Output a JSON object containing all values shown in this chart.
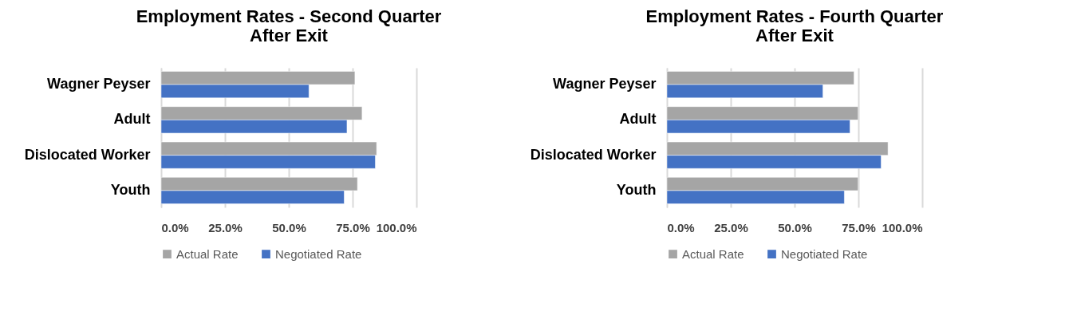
{
  "chart_data": [
    {
      "type": "bar",
      "orientation": "horizontal",
      "title": "Employment Rates - Second Quarter\nAfter Exit",
      "categories": [
        "Wagner Peyser",
        "Adult",
        "Dislocated Worker",
        "Youth"
      ],
      "series": [
        {
          "name": "Actual Rate",
          "color": "#a5a5a5",
          "values": [
            75.9,
            78.7,
            84.4,
            76.9
          ]
        },
        {
          "name": "Negotiated Rate",
          "color": "#4472c4",
          "values": [
            57.9,
            72.8,
            83.9,
            71.7
          ]
        }
      ],
      "xlim": [
        0,
        100
      ],
      "xticks": [
        {
          "value": 0,
          "label": "0.0%"
        },
        {
          "value": 25,
          "label": "25.0%"
        },
        {
          "value": 50,
          "label": "50.0%"
        },
        {
          "value": 75,
          "label": "75.0%"
        },
        {
          "value": 100,
          "label": "100.0%"
        }
      ],
      "grid": "x",
      "legend": "bottom"
    },
    {
      "type": "bar",
      "orientation": "horizontal",
      "title": "Employment Rates - Fourth Quarter\nAfter Exit",
      "categories": [
        "Wagner Peyser",
        "Adult",
        "Dislocated Worker",
        "Youth"
      ],
      "series": [
        {
          "name": "Actual Rate",
          "color": "#a5a5a5",
          "values": [
            73.3,
            74.9,
            86.6,
            74.9
          ]
        },
        {
          "name": "Negotiated Rate",
          "color": "#4472c4",
          "values": [
            61.1,
            71.7,
            83.9,
            69.5
          ]
        }
      ],
      "xlim": [
        0,
        100
      ],
      "xticks": [
        {
          "value": 0,
          "label": "0.0%"
        },
        {
          "value": 25,
          "label": "25.0%"
        },
        {
          "value": 50,
          "label": "50.0%"
        },
        {
          "value": 75,
          "label": "75.0%"
        },
        {
          "value": 100,
          "label": "100.0%"
        }
      ],
      "grid": "x",
      "legend": "bottom"
    }
  ]
}
